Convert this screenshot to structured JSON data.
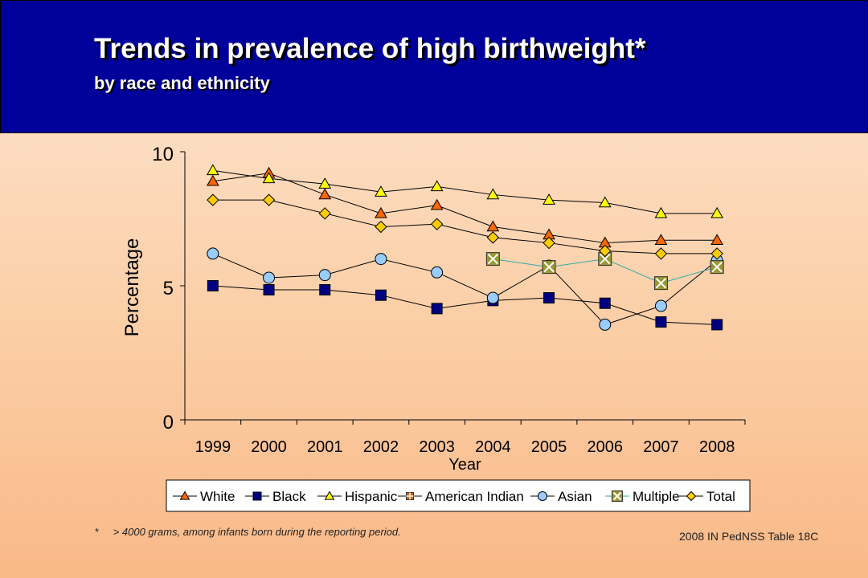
{
  "slide": {
    "title": "Trends in prevalence of high birthweight*",
    "subtitle": "by race and ethnicity",
    "footnote_marker": "*",
    "footnote": "> 4000 grams, among infants born during the reporting period.",
    "source": "2008 IN PedNSS Table 18C"
  },
  "chart_data": {
    "type": "line",
    "xlabel": "Year",
    "ylabel": "Percentage",
    "categories": [
      "1999",
      "2000",
      "2001",
      "2002",
      "2003",
      "2004",
      "2005",
      "2006",
      "2007",
      "2008"
    ],
    "ylim": [
      0,
      10
    ],
    "yticks": [
      0,
      5,
      10
    ],
    "grid": false,
    "legend_position": "bottom",
    "series": [
      {
        "name": "White",
        "marker": "triangle",
        "color": "#ff6600",
        "values": [
          8.9,
          9.2,
          8.4,
          7.7,
          8.0,
          7.2,
          6.9,
          6.6,
          6.7,
          6.7
        ]
      },
      {
        "name": "Black",
        "marker": "square",
        "color": "#000080",
        "values": [
          5.0,
          4.85,
          4.85,
          4.65,
          4.15,
          4.45,
          4.55,
          4.35,
          3.65,
          3.55
        ]
      },
      {
        "name": "Hispanic",
        "marker": "triangle",
        "color": "#ffff00",
        "values": [
          9.3,
          9.0,
          8.8,
          8.5,
          8.7,
          8.4,
          8.2,
          8.1,
          7.7,
          7.7
        ]
      },
      {
        "name": "American Indian",
        "marker": "square-cross",
        "color": "#cc6600",
        "values": [
          null,
          null,
          null,
          null,
          null,
          null,
          null,
          null,
          null,
          null
        ]
      },
      {
        "name": "Asian",
        "marker": "circle",
        "color": "#99ccff",
        "values": [
          6.2,
          5.3,
          5.4,
          6.0,
          5.5,
          4.55,
          5.75,
          3.55,
          4.25,
          5.95
        ]
      },
      {
        "name": "Multiple",
        "marker": "square-x",
        "color": "#999933",
        "line_color": "#33aaaa",
        "values": [
          null,
          null,
          null,
          null,
          null,
          6.0,
          5.7,
          6.0,
          5.1,
          5.7
        ]
      },
      {
        "name": "Total",
        "marker": "diamond",
        "color": "#ffcc00",
        "values": [
          8.2,
          8.2,
          7.7,
          7.2,
          7.3,
          6.8,
          6.6,
          6.3,
          6.2,
          6.2
        ]
      }
    ]
  }
}
